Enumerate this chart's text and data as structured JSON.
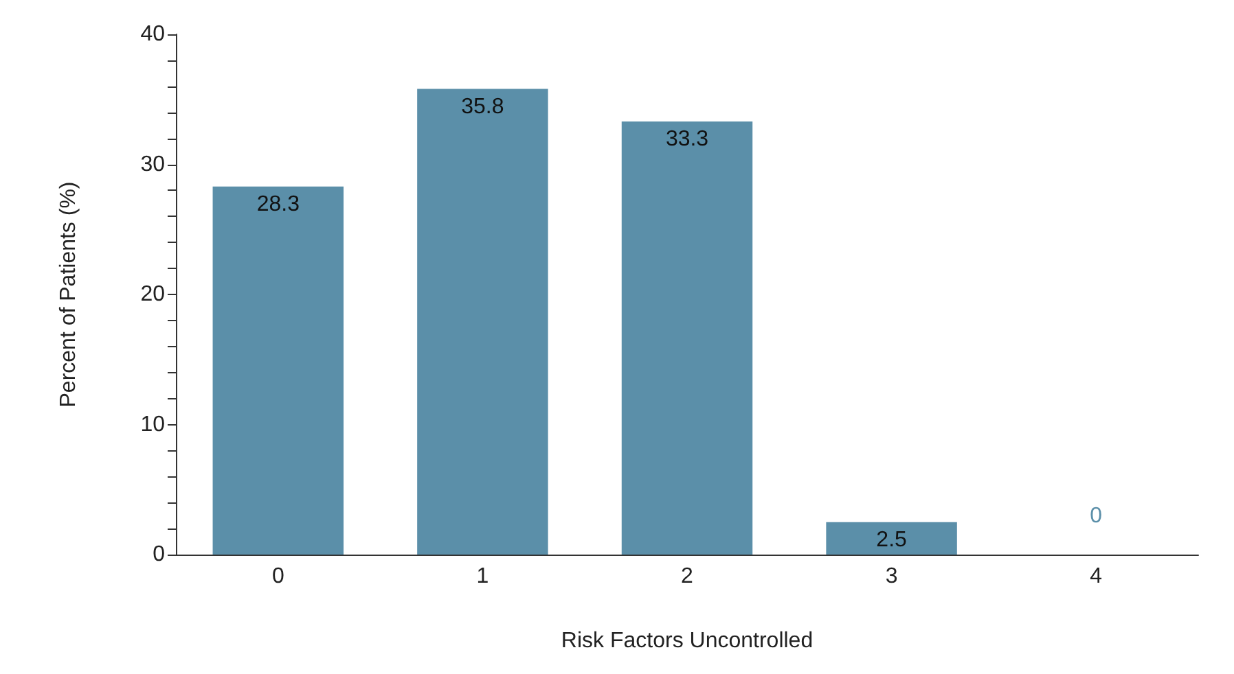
{
  "chart_data": {
    "type": "bar",
    "xlabel": "Risk Factors Uncontrolled",
    "ylabel": "Percent of Patients (%)",
    "categories": [
      "0",
      "1",
      "2",
      "3",
      "4"
    ],
    "values": [
      28.3,
      35.8,
      33.3,
      2.5,
      0
    ],
    "color": "#5b8fa9",
    "data_labels": true,
    "ylim": [
      0,
      40
    ],
    "yticks": [
      0,
      {
        "value": 2,
        "label": null
      },
      {
        "value": 4,
        "label": null
      },
      {
        "value": 6,
        "label": null
      },
      {
        "value": 8,
        "label": null
      },
      10,
      {
        "value": 12,
        "label": null
      },
      {
        "value": 14,
        "label": null
      },
      {
        "value": 16,
        "label": null
      },
      {
        "value": 18,
        "label": null
      },
      20,
      {
        "value": 22,
        "label": null
      },
      {
        "value": 24,
        "label": null
      },
      {
        "value": 26,
        "label": null
      },
      {
        "value": 28,
        "label": null
      },
      30,
      {
        "value": 32,
        "label": null
      },
      {
        "value": 34,
        "label": null
      },
      {
        "value": 36,
        "label": null
      },
      {
        "value": 38,
        "label": null
      },
      40
    ],
    "grid": false
  }
}
